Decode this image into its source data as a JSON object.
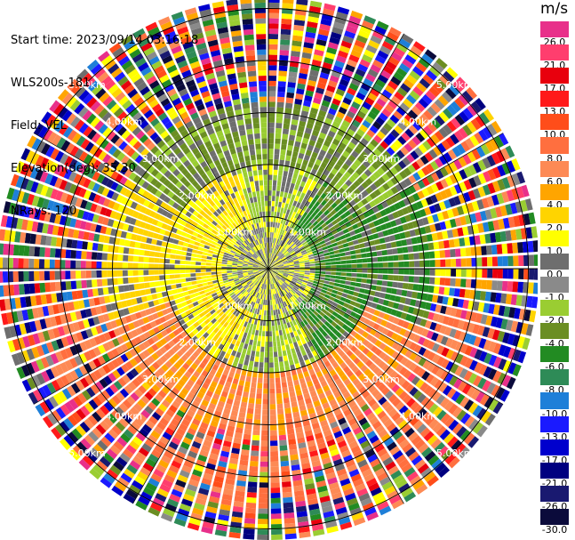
{
  "meta": {
    "start_time": "Start time: 2023/09/14 03:16:18",
    "instrument": "WLS200s-181",
    "field": "Field: VEL",
    "elevation": "Elevation(deg): 35.30",
    "nrays": "NRays: 120"
  },
  "colorbar": {
    "unit": "m/s",
    "bins": [
      {
        "label": "26.0",
        "color": "#e8308a"
      },
      {
        "label": "21.0",
        "color": "#ff3e6e"
      },
      {
        "label": "17.0",
        "color": "#e8000d"
      },
      {
        "label": "13.0",
        "color": "#ff1a1a"
      },
      {
        "label": "10.0",
        "color": "#ff4d1a"
      },
      {
        "label": "8.0",
        "color": "#ff6f3f"
      },
      {
        "label": "6.0",
        "color": "#fd8a55"
      },
      {
        "label": "4.0",
        "color": "#ffa500"
      },
      {
        "label": "2.0",
        "color": "#ffd400"
      },
      {
        "label": "1.0",
        "color": "#ffff00"
      },
      {
        "label": "0.0",
        "color": "#6e6e6e"
      },
      {
        "label": "-1.0",
        "color": "#8a8a8a"
      },
      {
        "label": "-2.0",
        "color": "#9acd32"
      },
      {
        "label": "-4.0",
        "color": "#6b8e23"
      },
      {
        "label": "-6.0",
        "color": "#228b22"
      },
      {
        "label": "-8.0",
        "color": "#2e8b57"
      },
      {
        "label": "-10.0",
        "color": "#1e7fd8"
      },
      {
        "label": "-13.0",
        "color": "#1a1aff"
      },
      {
        "label": "-17.0",
        "color": "#0000cd"
      },
      {
        "label": "-21.0",
        "color": "#000080"
      },
      {
        "label": "-26.0",
        "color": "#191970"
      },
      {
        "label": "-30.0",
        "color": "#0b0b3b"
      }
    ]
  },
  "chart_data": {
    "type": "heatmap",
    "subtype": "polar-ppi",
    "field": "VEL",
    "unit": "m/s",
    "n_rays": 120,
    "range_rings": [
      "1.00km",
      "2.00km",
      "3.00km",
      "4.00km",
      "5.00km"
    ],
    "value_pattern_by_range_km": [
      {
        "from": 0.0,
        "to": 1.0,
        "dominant": "near 0 (yellow / grey), mixed"
      },
      {
        "from": 1.0,
        "to": 2.0,
        "dominant": "east: -4 to -6 (green); west: 1 to 2 (yellow)"
      },
      {
        "from": 2.0,
        "to": 3.0,
        "dominant": "north: -2 to -4 (olive); south/southeast: 4 to 8 (orange)"
      },
      {
        "from": 3.0,
        "to": 5.0,
        "dominant": "noisy, all values"
      }
    ]
  }
}
